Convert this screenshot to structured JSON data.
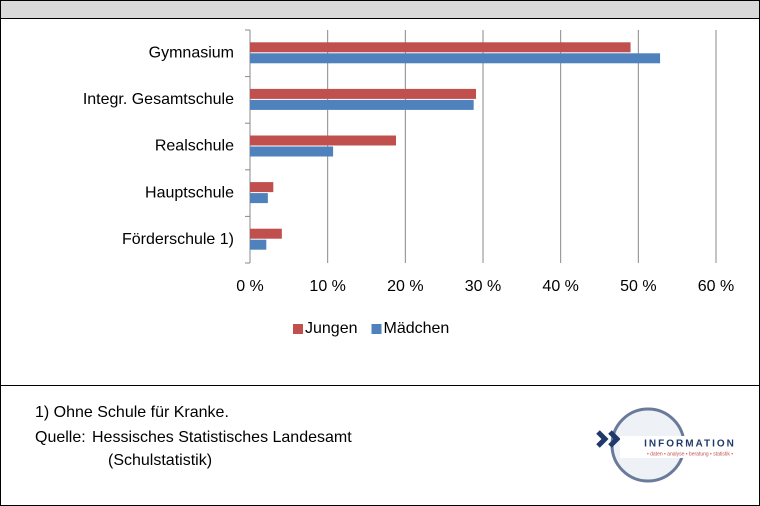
{
  "chart_data": {
    "type": "bar",
    "orientation": "horizontal",
    "categories": [
      "Gymnasium",
      "Integr. Gesamtschule",
      "Realschule",
      "Hauptschule",
      "Förderschule 1)"
    ],
    "series": [
      {
        "name": "Jungen",
        "color": "#c0504d",
        "values": [
          49.0,
          29.1,
          18.8,
          3.0,
          4.1
        ]
      },
      {
        "name": "Mädchen",
        "color": "#4f81bd",
        "values": [
          52.8,
          28.8,
          10.7,
          2.3,
          2.1
        ]
      }
    ],
    "xlim": [
      0,
      60
    ],
    "xticks": [
      {
        "value": 0,
        "label": "0 %"
      },
      {
        "value": 10,
        "label": "10 %"
      },
      {
        "value": 20,
        "label": "20 %"
      },
      {
        "value": 30,
        "label": "30 %"
      },
      {
        "value": 40,
        "label": "40 %"
      },
      {
        "value": 50,
        "label": "50 %"
      },
      {
        "value": 60,
        "label": "60 %"
      }
    ],
    "grid": true,
    "legend": "bottom"
  },
  "footer": {
    "note": "1) Ohne Schule für Kranke.",
    "source_label": "Quelle:",
    "source_lines": [
      "Hessisches Statistisches Landesamt",
      "(Schulstatistik)"
    ]
  },
  "logo": {
    "text": "INFORMATION",
    "tagline": "• daten • analyse • beratung • statistik •"
  }
}
